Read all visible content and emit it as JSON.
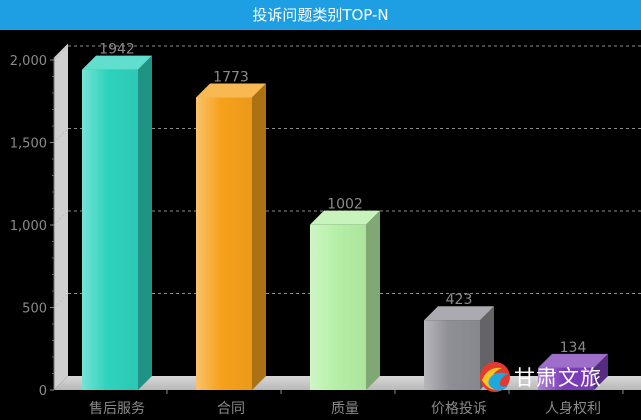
{
  "header": {
    "title": "投诉问题类别TOP-N"
  },
  "chart_data": {
    "type": "bar",
    "title": "",
    "xlabel": "",
    "ylabel": "",
    "categories": [
      "售后服务",
      "合同",
      "质量",
      "价格投诉",
      "人身权利"
    ],
    "values": [
      1942,
      1773,
      1002,
      423,
      134
    ],
    "value_labels": [
      "1942",
      "1773",
      "1002",
      "423",
      "134"
    ],
    "ylim": [
      0,
      2100
    ],
    "yticks": [
      0,
      500,
      1000,
      1500,
      2000
    ],
    "ytick_labels": [
      "0",
      "500",
      "1,000",
      "1,500",
      "2,000"
    ],
    "grid": true,
    "style": "3d",
    "colors": [
      "#2ed3bd",
      "#f6a11a",
      "#b5f0a6",
      "#8e8e95",
      "#7d3dba"
    ]
  },
  "watermark": {
    "text": "甘肃文旅"
  }
}
